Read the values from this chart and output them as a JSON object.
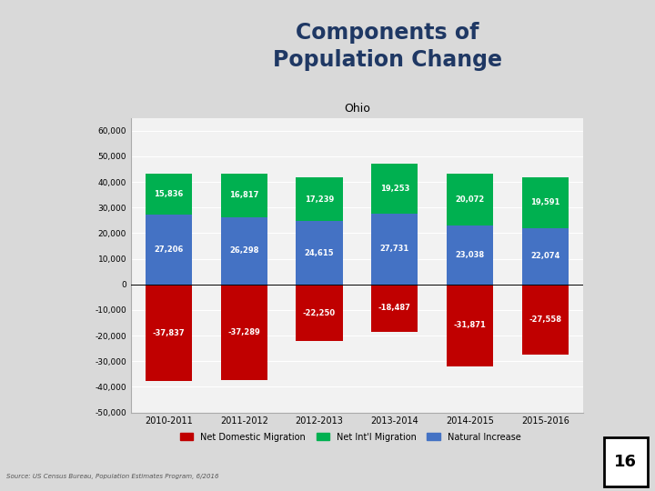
{
  "title": "Ohio",
  "categories": [
    "2010-2011",
    "2011-2012",
    "2012-2013",
    "2013-2014",
    "2014-2015",
    "2015-2016"
  ],
  "net_domestic_migration": [
    -37837,
    -37289,
    -22250,
    -18487,
    -31871,
    -27558
  ],
  "net_intl_migration": [
    15836,
    16817,
    17239,
    19253,
    20072,
    19591
  ],
  "natural_increase": [
    27206,
    26298,
    24615,
    27731,
    23038,
    22074
  ],
  "colors": {
    "net_domestic_migration": "#c00000",
    "net_intl_migration": "#00b050",
    "natural_increase": "#4472c4"
  },
  "ylim": [
    -50000,
    65000
  ],
  "yticks": [
    -50000,
    -40000,
    -30000,
    -20000,
    -10000,
    0,
    10000,
    20000,
    30000,
    40000,
    50000,
    60000
  ],
  "ytick_labels": [
    "-50,000",
    "-40,000",
    "-30,000",
    "-20,000",
    "-10,000",
    "0",
    "10,000",
    "20,000",
    "30,000",
    "40,000",
    "50,000",
    "60,000"
  ],
  "legend_labels": [
    "Net Domestic Migration",
    "Net Int'l Migration",
    "Natural Increase"
  ],
  "bg_color": "#f2f2f2",
  "chart_area_color": "#f2f2f2",
  "title_text": "Components of\nPopulation Change",
  "title_color": "#1f3864",
  "right_bar_color": "#4caf50",
  "header_bg": "#ffffff",
  "slide_bg": "#d9d9d9"
}
